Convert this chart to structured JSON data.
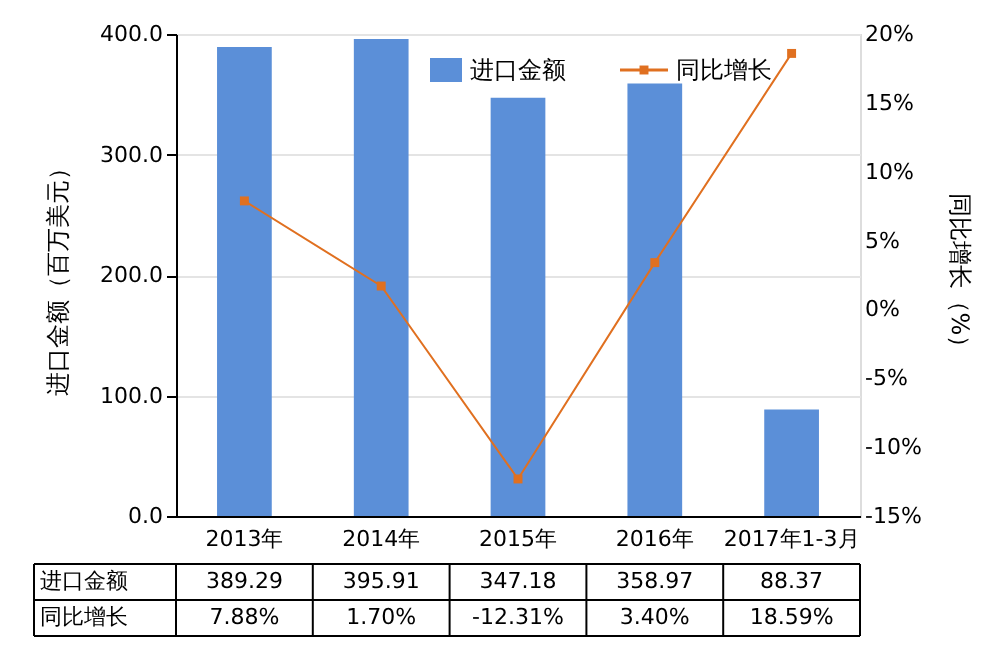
{
  "chart_data": {
    "type": "bar",
    "ylabel": "进口金额（百万美元）",
    "y2label": "同比增长（%）",
    "categories": [
      "2013年",
      "2014年",
      "2015年",
      "2016年",
      "2017年1-3月"
    ],
    "series": [
      {
        "name": "进口金额",
        "color": "#5b8fd8",
        "values": [
          389.29,
          395.91,
          347.18,
          358.97,
          88.37
        ],
        "value_labels": [
          "389.29",
          "395.91",
          "347.18",
          "358.97",
          "88.37"
        ]
      },
      {
        "name": "同比增长",
        "type": "line",
        "axis": "y2",
        "color": "#e07020",
        "marker": "square",
        "values": [
          7.88,
          1.7,
          -12.31,
          3.4,
          18.59
        ],
        "value_labels": [
          "7.88%",
          "1.70%",
          "-12.31%",
          "3.40%",
          "18.59%"
        ]
      }
    ],
    "ylim": [
      0,
      400
    ],
    "yticks": [
      {
        "value": 0,
        "label": "0.0"
      },
      {
        "value": 100,
        "label": "100.0"
      },
      {
        "value": 200,
        "label": "200.0"
      },
      {
        "value": 300,
        "label": "300.0"
      },
      {
        "value": 400,
        "label": "400.0"
      }
    ],
    "y2lim": [
      -15,
      20
    ],
    "y2ticks": [
      {
        "value": -15,
        "label": "-15%"
      },
      {
        "value": -10,
        "label": "-10%"
      },
      {
        "value": -5,
        "label": "-5%"
      },
      {
        "value": 0,
        "label": "0%"
      },
      {
        "value": 5,
        "label": "5%"
      },
      {
        "value": 10,
        "label": "10%"
      },
      {
        "value": 15,
        "label": "15%"
      },
      {
        "value": 20,
        "label": "20%"
      }
    ],
    "grid": "y",
    "legend": "top right"
  }
}
